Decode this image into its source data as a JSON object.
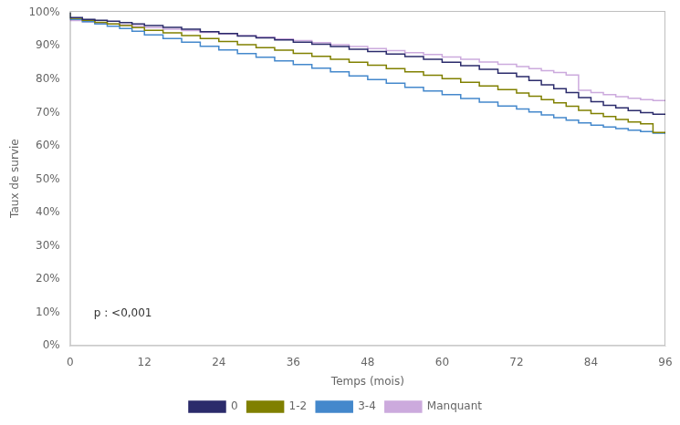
{
  "chart_data": {
    "type": "step",
    "xlabel": "Temps (mois)",
    "ylabel": "Taux de survie",
    "xlim": [
      0,
      96
    ],
    "ylim": [
      0,
      1.005
    ],
    "xticks": [
      0,
      12,
      24,
      36,
      48,
      60,
      72,
      84,
      96
    ],
    "yticks": [
      {
        "value": 0.0,
        "label": "0%"
      },
      {
        "value": 0.1,
        "label": "10%"
      },
      {
        "value": 0.2,
        "label": "20%"
      },
      {
        "value": 0.3,
        "label": "30%"
      },
      {
        "value": 0.4,
        "label": "40%"
      },
      {
        "value": 0.5,
        "label": "50%"
      },
      {
        "value": 0.6,
        "label": "60%"
      },
      {
        "value": 0.7,
        "label": "70%"
      },
      {
        "value": 0.8,
        "label": "80%"
      },
      {
        "value": 0.9,
        "label": "90%"
      },
      {
        "value": 1.0,
        "label": "100%"
      }
    ],
    "annotation": "p : <0,001",
    "legend": "bottom",
    "grid": false,
    "x": [
      0,
      2,
      4,
      6,
      8,
      10,
      12,
      15,
      18,
      21,
      24,
      27,
      30,
      33,
      36,
      39,
      42,
      45,
      48,
      51,
      54,
      57,
      60,
      63,
      66,
      69,
      72,
      74,
      76,
      78,
      80,
      82,
      84,
      86,
      88,
      90,
      92,
      94,
      96
    ],
    "series": [
      {
        "name": "0",
        "color": "#2B2B6B",
        "values": [
          1.0,
          0.985,
          0.98,
          0.977,
          0.974,
          0.97,
          0.966,
          0.961,
          0.956,
          0.95,
          0.943,
          0.937,
          0.93,
          0.924,
          0.918,
          0.911,
          0.905,
          0.898,
          0.89,
          0.883,
          0.876,
          0.868,
          0.86,
          0.851,
          0.841,
          0.83,
          0.818,
          0.808,
          0.796,
          0.783,
          0.772,
          0.76,
          0.745,
          0.733,
          0.722,
          0.714,
          0.706,
          0.7,
          0.695
        ]
      },
      {
        "name": "1-2",
        "color": "#808000",
        "values": [
          1.0,
          0.983,
          0.977,
          0.971,
          0.966,
          0.961,
          0.955,
          0.947,
          0.939,
          0.931,
          0.922,
          0.913,
          0.904,
          0.895,
          0.887,
          0.878,
          0.869,
          0.86,
          0.851,
          0.842,
          0.832,
          0.822,
          0.812,
          0.802,
          0.791,
          0.78,
          0.769,
          0.759,
          0.749,
          0.739,
          0.729,
          0.719,
          0.707,
          0.697,
          0.688,
          0.679,
          0.672,
          0.666,
          0.64
        ]
      },
      {
        "name": "3-4",
        "color": "#4488CC",
        "values": [
          1.0,
          0.98,
          0.973,
          0.966,
          0.959,
          0.952,
          0.944,
          0.933,
          0.922,
          0.911,
          0.899,
          0.888,
          0.877,
          0.866,
          0.855,
          0.844,
          0.833,
          0.822,
          0.81,
          0.799,
          0.788,
          0.776,
          0.765,
          0.754,
          0.742,
          0.731,
          0.72,
          0.711,
          0.702,
          0.693,
          0.685,
          0.677,
          0.669,
          0.662,
          0.657,
          0.652,
          0.647,
          0.643,
          0.638
        ]
      },
      {
        "name": "Manquant",
        "color": "#CCAADD",
        "values": [
          1.0,
          0.976,
          0.972,
          0.969,
          0.966,
          0.963,
          0.96,
          0.955,
          0.95,
          0.946,
          0.941,
          0.936,
          0.931,
          0.926,
          0.921,
          0.916,
          0.91,
          0.904,
          0.898,
          0.892,
          0.886,
          0.88,
          0.874,
          0.867,
          0.86,
          0.852,
          0.845,
          0.838,
          0.832,
          0.826,
          0.82,
          0.813,
          0.767,
          0.76,
          0.754,
          0.748,
          0.743,
          0.739,
          0.736
        ]
      }
    ]
  }
}
